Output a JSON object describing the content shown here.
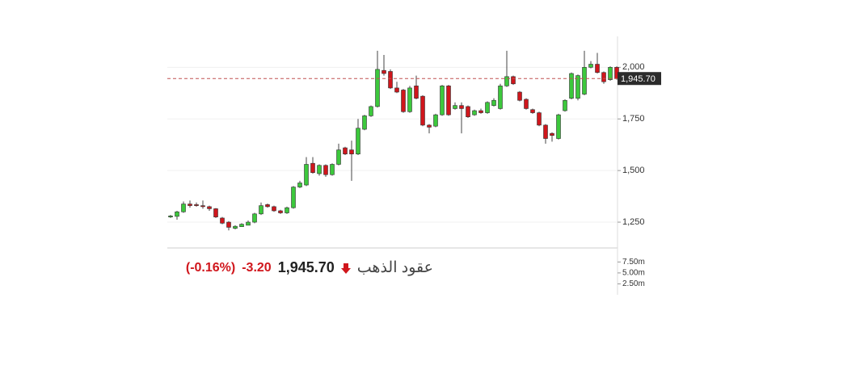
{
  "header": {
    "name": "عقود الذهب",
    "change": "-3.20",
    "change_pct": "(-0.16%)"
  },
  "chart_data": {
    "type": "candlestick",
    "open": [
      1275,
      1278,
      1300,
      1338,
      1335,
      1330,
      1325,
      1315,
      1270,
      1250,
      1220,
      1228,
      1235,
      1250,
      1290,
      1335,
      1325,
      1305,
      1295,
      1320,
      1420,
      1430,
      1535,
      1485,
      1525,
      1480,
      1530,
      1610,
      1600,
      1580,
      1700,
      1765,
      1810,
      1985,
      1980,
      1900,
      1890,
      1785,
      1910,
      1860,
      1720,
      1715,
      1770,
      1910,
      1800,
      1815,
      1810,
      1770,
      1790,
      1780,
      1815,
      1800,
      1910,
      1955,
      1880,
      1845,
      1795,
      1780,
      1720,
      1680,
      1655,
      1790,
      1850,
      1850,
      1870,
      2000,
      2015,
      1975,
      1940,
      2000
    ],
    "high": [
      1285,
      1305,
      1350,
      1355,
      1345,
      1355,
      1330,
      1318,
      1275,
      1255,
      1235,
      1245,
      1258,
      1295,
      1345,
      1340,
      1330,
      1310,
      1325,
      1425,
      1450,
      1565,
      1565,
      1530,
      1530,
      1535,
      1630,
      1615,
      1645,
      1750,
      1770,
      1815,
      2080,
      2060,
      1990,
      1930,
      1895,
      1910,
      1960,
      1865,
      1725,
      1775,
      1915,
      1915,
      1830,
      1830,
      1815,
      1795,
      1800,
      1835,
      1850,
      1920,
      2080,
      1960,
      1885,
      1850,
      1800,
      1785,
      1725,
      1685,
      1775,
      1845,
      1975,
      1965,
      2080,
      2030,
      2070,
      1980,
      2005,
      2005
    ],
    "low": [
      1270,
      1262,
      1295,
      1320,
      1325,
      1315,
      1305,
      1270,
      1240,
      1210,
      1215,
      1235,
      1245,
      1245,
      1285,
      1320,
      1300,
      1290,
      1290,
      1315,
      1415,
      1425,
      1485,
      1475,
      1470,
      1475,
      1525,
      1575,
      1450,
      1575,
      1695,
      1760,
      1805,
      1960,
      1895,
      1875,
      1780,
      1780,
      1845,
      1715,
      1680,
      1710,
      1765,
      1765,
      1795,
      1680,
      1755,
      1765,
      1775,
      1775,
      1810,
      1795,
      1905,
      1915,
      1835,
      1795,
      1775,
      1715,
      1630,
      1640,
      1650,
      1785,
      1845,
      1840,
      1865,
      1995,
      1970,
      1920,
      1935,
      1940
    ],
    "close": [
      1280,
      1300,
      1338,
      1330,
      1330,
      1325,
      1315,
      1275,
      1245,
      1225,
      1230,
      1240,
      1250,
      1290,
      1330,
      1325,
      1305,
      1295,
      1320,
      1420,
      1440,
      1530,
      1490,
      1525,
      1480,
      1530,
      1600,
      1580,
      1580,
      1705,
      1765,
      1810,
      1990,
      1970,
      1900,
      1880,
      1785,
      1900,
      1850,
      1720,
      1710,
      1770,
      1910,
      1770,
      1815,
      1800,
      1760,
      1790,
      1780,
      1830,
      1840,
      1910,
      1955,
      1920,
      1840,
      1800,
      1780,
      1720,
      1655,
      1670,
      1770,
      1840,
      1970,
      1960,
      2000,
      2015,
      1975,
      1930,
      2000,
      1945.7
    ],
    "up_color": "#3cc83c",
    "down_color": "#d0161c",
    "ylim": [
      1125,
      2150
    ],
    "yticks": [
      {
        "value": 1250,
        "label": "1,250"
      },
      {
        "value": 1500,
        "label": "1,500"
      },
      {
        "value": 1750,
        "label": "1,750"
      },
      {
        "value": 2000,
        "label": "2,000"
      }
    ],
    "last": {
      "value": 1945.7,
      "label": "1,945.70"
    },
    "volume_ylim": [
      0,
      10700000
    ],
    "volume_yticks": [
      {
        "value": 2500000,
        "label": "2.50m"
      },
      {
        "value": 5000000,
        "label": "5.00m"
      },
      {
        "value": 7500000,
        "label": "7.50m"
      }
    ],
    "grid": true
  }
}
